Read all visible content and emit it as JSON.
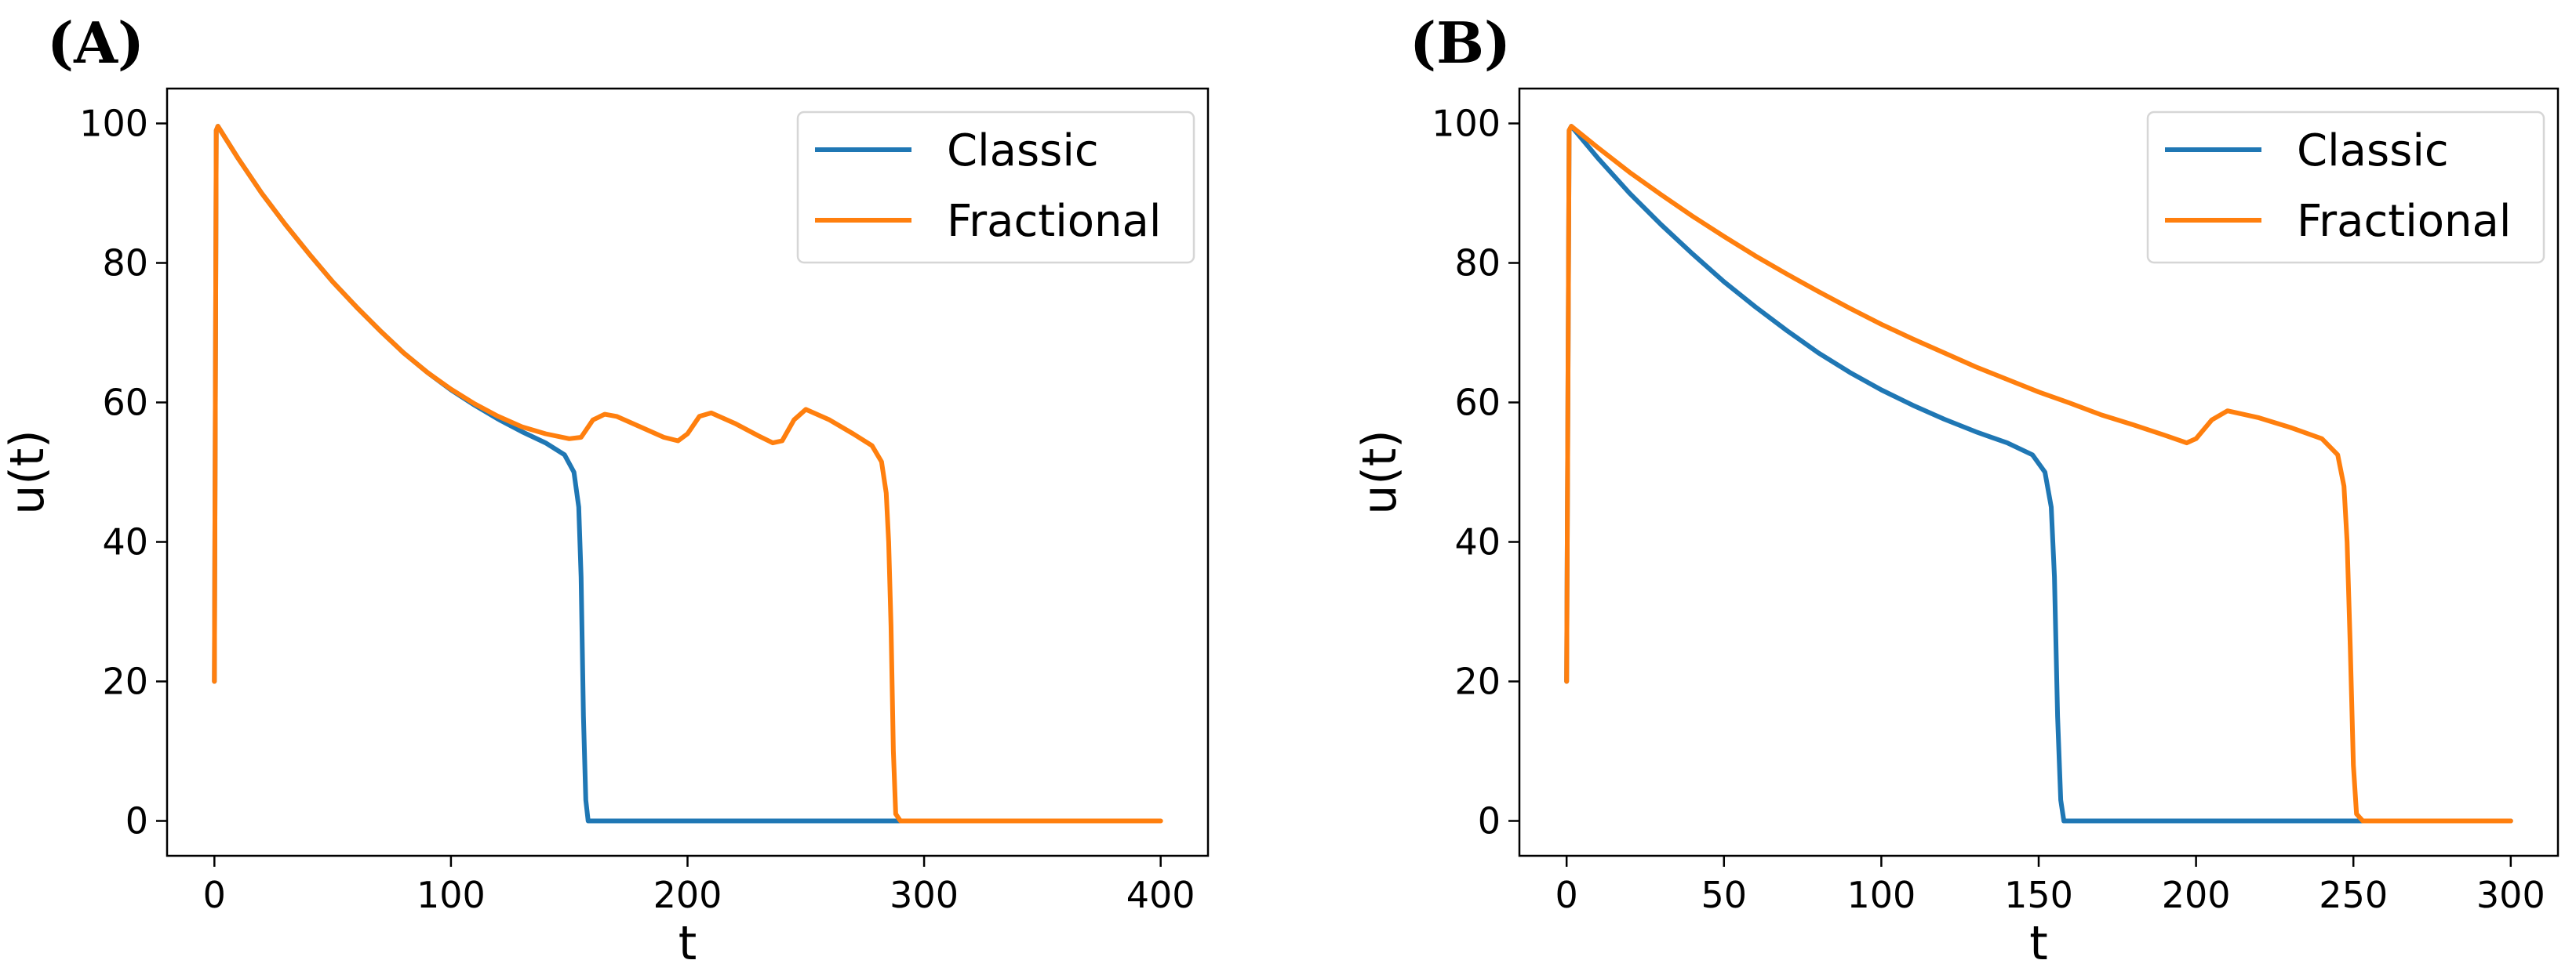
{
  "colors": {
    "classic": "#1f77b4",
    "fractional": "#ff7f0e"
  },
  "chart_data": [
    {
      "type": "line",
      "panel_label": "(A)",
      "xlabel": "t",
      "ylabel": "u(t)",
      "xlim": [
        -20,
        420
      ],
      "ylim": [
        -5,
        105
      ],
      "xticks": [
        0,
        100,
        200,
        300,
        400
      ],
      "yticks": [
        0,
        20,
        40,
        60,
        80,
        100
      ],
      "legend": {
        "position": "top-right",
        "entries": [
          "Classic",
          "Fractional"
        ]
      },
      "series": [
        {
          "name": "Classic",
          "x": [
            0,
            0.8,
            1.5,
            10,
            20,
            30,
            40,
            50,
            60,
            70,
            80,
            90,
            100,
            110,
            120,
            130,
            140,
            148,
            152,
            154,
            155,
            156,
            157,
            158,
            300
          ],
          "y": [
            20,
            99,
            99.6,
            95,
            90,
            85.5,
            81.3,
            77.3,
            73.7,
            70.3,
            67.1,
            64.3,
            61.8,
            59.6,
            57.6,
            55.8,
            54.2,
            52.5,
            50,
            45,
            35,
            15,
            3,
            0,
            0
          ]
        },
        {
          "name": "Fractional",
          "x": [
            0,
            0.8,
            1.5,
            10,
            20,
            30,
            40,
            50,
            60,
            70,
            80,
            90,
            100,
            110,
            120,
            130,
            140,
            150,
            155,
            160,
            165,
            170,
            180,
            190,
            196,
            200,
            205,
            210,
            220,
            230,
            236,
            240,
            245,
            250,
            260,
            270,
            278,
            282,
            284,
            285,
            286,
            287,
            288,
            290,
            400
          ],
          "y": [
            20,
            99,
            99.6,
            95,
            90,
            85.5,
            81.3,
            77.3,
            73.7,
            70.3,
            67.1,
            64.3,
            61.9,
            59.8,
            58,
            56.5,
            55.5,
            54.8,
            55,
            57.5,
            58.3,
            58,
            56.5,
            55,
            54.5,
            55.5,
            58,
            58.5,
            57,
            55.2,
            54.2,
            54.5,
            57.5,
            59,
            57.5,
            55.5,
            53.8,
            51.5,
            47,
            40,
            28,
            10,
            1,
            0,
            0
          ]
        }
      ]
    },
    {
      "type": "line",
      "panel_label": "(B)",
      "xlabel": "t",
      "ylabel": "u(t)",
      "xlim": [
        -15,
        315
      ],
      "ylim": [
        -5,
        105
      ],
      "xticks": [
        0,
        50,
        100,
        150,
        200,
        250,
        300
      ],
      "yticks": [
        0,
        20,
        40,
        60,
        80,
        100
      ],
      "legend": {
        "position": "top-right",
        "entries": [
          "Classic",
          "Fractional"
        ]
      },
      "series": [
        {
          "name": "Classic",
          "x": [
            0,
            0.8,
            1.5,
            10,
            20,
            30,
            40,
            50,
            60,
            70,
            80,
            90,
            100,
            110,
            120,
            130,
            140,
            148,
            152,
            154,
            155,
            156,
            157,
            158,
            300
          ],
          "y": [
            20,
            99,
            99.6,
            95,
            90,
            85.5,
            81.3,
            77.3,
            73.7,
            70.3,
            67.1,
            64.3,
            61.8,
            59.6,
            57.6,
            55.8,
            54.2,
            52.5,
            50,
            45,
            35,
            15,
            3,
            0,
            0
          ]
        },
        {
          "name": "Fractional",
          "x": [
            0,
            0.8,
            1.5,
            10,
            20,
            30,
            40,
            50,
            60,
            70,
            80,
            90,
            100,
            110,
            120,
            130,
            140,
            150,
            160,
            170,
            180,
            190,
            197,
            200,
            205,
            210,
            220,
            230,
            240,
            245,
            247,
            248,
            249,
            250,
            251,
            253,
            300
          ],
          "y": [
            20,
            99,
            99.6,
            96.5,
            93,
            89.8,
            86.7,
            83.8,
            81,
            78.4,
            75.9,
            73.5,
            71.2,
            69.1,
            67.1,
            65.1,
            63.3,
            61.5,
            59.9,
            58.2,
            56.8,
            55.3,
            54.2,
            54.8,
            57.5,
            58.8,
            57.8,
            56.4,
            54.8,
            52.5,
            48,
            40,
            25,
            8,
            1,
            0,
            0
          ]
        }
      ]
    }
  ]
}
